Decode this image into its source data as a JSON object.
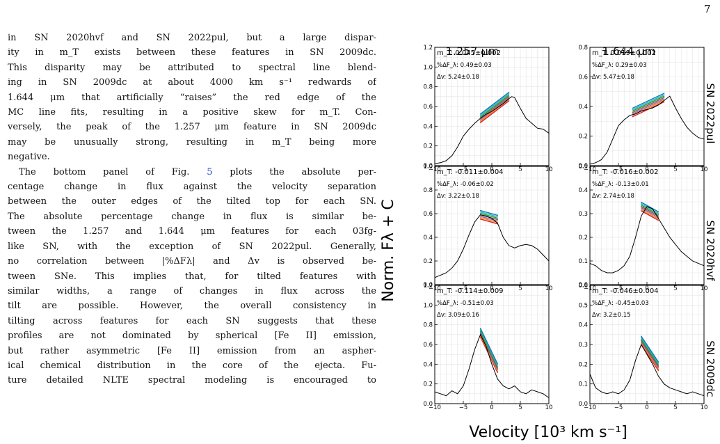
{
  "page_number": "7",
  "body_text": {
    "paragraph_1": [
      "in SN 2020hvf and SN 2022pul, but a large dispar-",
      "ity in m_T exists between these features in SN 2009dc.",
      "This disparity may be attributed to spectral line blend-",
      "ing in SN 2009dc at about 4000 km s⁻¹ redwards of",
      "1.644 μm that artificially “raises” the red edge of the",
      "MC line fits, resulting in a positive skew for m_T. Con-",
      "versely, the peak of the 1.257 μm feature in SN 2009dc",
      "may be unusually strong, resulting in m_T being more",
      "negative."
    ],
    "paragraph_2": {
      "first_line_prefix": "The bottom panel of Fig. ",
      "fig_ref": "5",
      "first_line_suffix": " plots the absolute per-",
      "lines": [
        "centage change in flux against the velocity separation",
        "between the outer edges of the tilted top for each SN.",
        "The absolute percentage change in flux is similar be-",
        "tween the 1.257 and 1.644 μm features for each 03fg-",
        "like SN, with the exception of SN 2022pul. Generally,",
        "no correlation between |%ΔFλ| and Δv is observed be-",
        "tween SNe. This implies that, for tilted features with",
        "similar widths, a range of changes in flux across the",
        "tilt are possible. However, the overall consistency in",
        "tilting across features for each SN suggests that these",
        "profiles are not dominated by spherical [Fe II] emission,",
        "but rather asymmetric [Fe II] emission from an aspher-",
        "ical chemical distribution in the core of the ejecta. Fu-",
        "ture detailed NLTE spectral modeling is encouraged to"
      ]
    }
  },
  "chart_data": {
    "type": "line",
    "column_titles": [
      "1.257 μm",
      "1.644 μm"
    ],
    "row_labels": [
      "SN 2022pul",
      "SN 2020hvf",
      "SN 2009dc"
    ],
    "xlabel": "Velocity [10³ km s⁻¹]",
    "ylabel": "Norm. Fλ + C",
    "xlim": [
      -10,
      10
    ],
    "xticks": [
      -10,
      -5,
      0,
      5,
      10
    ],
    "grid": true,
    "panels": [
      {
        "sn": "SN 2022pul",
        "feature": "1.257 μm",
        "ylim": [
          0,
          1.2
        ],
        "yticks": [
          0.0,
          0.2,
          0.4,
          0.6,
          0.8,
          1.0,
          1.2
        ],
        "annotations": [
          "m_T: 0.045±0.002",
          "%ΔF_λ: 0.49±0.03",
          "Δv: 5.24±0.18"
        ],
        "spectrum_x": [
          -10,
          -9,
          -8,
          -7,
          -6,
          -5,
          -4,
          -3,
          -2,
          -1,
          0,
          1,
          2,
          3,
          3.5,
          4,
          5,
          6,
          7,
          8,
          9,
          10
        ],
        "spectrum_y": [
          0.02,
          0.03,
          0.05,
          0.1,
          0.19,
          0.3,
          0.37,
          0.43,
          0.48,
          0.52,
          0.55,
          0.59,
          0.63,
          0.68,
          0.7,
          0.69,
          0.58,
          0.48,
          0.43,
          0.38,
          0.37,
          0.33
        ],
        "fit_x": [
          -2,
          3
        ],
        "fit_y": [
          0.48,
          0.7
        ]
      },
      {
        "sn": "SN 2022pul",
        "feature": "1.644 μm",
        "ylim": [
          0,
          0.8
        ],
        "yticks": [
          0.0,
          0.2,
          0.4,
          0.6,
          0.8
        ],
        "annotations": [
          "m_T: 0.019±0.002",
          "%ΔF_λ: 0.29±0.03",
          "Δv: 5.47±0.18"
        ],
        "spectrum_x": [
          -10,
          -9,
          -8,
          -7,
          -6,
          -5,
          -4,
          -3,
          -2,
          -1,
          0,
          1,
          2,
          3,
          4,
          5,
          6,
          7,
          8,
          9,
          10
        ],
        "spectrum_y": [
          0.01,
          0.02,
          0.04,
          0.09,
          0.18,
          0.27,
          0.31,
          0.34,
          0.35,
          0.37,
          0.38,
          0.39,
          0.41,
          0.44,
          0.47,
          0.39,
          0.32,
          0.26,
          0.22,
          0.19,
          0.18
        ],
        "fit_x": [
          -2.5,
          3
        ],
        "fit_y": [
          0.36,
          0.46
        ]
      },
      {
        "sn": "SN 2020hvf",
        "feature": "1.257 μm",
        "ylim": [
          0,
          1.0
        ],
        "yticks": [
          0.0,
          0.2,
          0.4,
          0.6,
          0.8,
          1.0
        ],
        "annotations": [
          "m_T: -0.011±0.004",
          "%ΔF_λ: -0.06±0.02",
          "Δv: 3.22±0.18"
        ],
        "spectrum_x": [
          -10,
          -9,
          -8,
          -7,
          -6,
          -5,
          -4,
          -3,
          -2,
          -1,
          0,
          1,
          2,
          3,
          4,
          5,
          6,
          7,
          8,
          9,
          10
        ],
        "spectrum_y": [
          0.06,
          0.08,
          0.1,
          0.14,
          0.2,
          0.3,
          0.42,
          0.53,
          0.59,
          0.58,
          0.56,
          0.52,
          0.4,
          0.33,
          0.31,
          0.33,
          0.34,
          0.33,
          0.3,
          0.25,
          0.2
        ],
        "fit_x": [
          -2,
          1
        ],
        "fit_y": [
          0.59,
          0.55
        ]
      },
      {
        "sn": "SN 2020hvf",
        "feature": "1.644 μm",
        "ylim": [
          0,
          0.5
        ],
        "yticks": [
          0.0,
          0.1,
          0.2,
          0.3,
          0.4,
          0.5
        ],
        "annotations": [
          "m_T: -0.016±0.002",
          "%ΔF_λ: -0.13±0.01",
          "Δv: 2.74±0.18"
        ],
        "spectrum_x": [
          -10,
          -9,
          -8,
          -7,
          -6,
          -5,
          -4,
          -3,
          -2,
          -1,
          0,
          1,
          2,
          3,
          4,
          5,
          6,
          7,
          8,
          9,
          10
        ],
        "spectrum_y": [
          0.09,
          0.08,
          0.06,
          0.05,
          0.05,
          0.06,
          0.08,
          0.12,
          0.2,
          0.29,
          0.33,
          0.32,
          0.28,
          0.24,
          0.2,
          0.17,
          0.14,
          0.12,
          0.1,
          0.09,
          0.08
        ],
        "fit_x": [
          -1,
          2
        ],
        "fit_y": [
          0.33,
          0.29
        ]
      },
      {
        "sn": "SN 2009dc",
        "feature": "1.257 μm",
        "ylim": [
          0,
          1.2
        ],
        "yticks": [
          0.0,
          0.2,
          0.4,
          0.6,
          0.8,
          1.0,
          1.2
        ],
        "annotations": [
          "m_T: -0.114±0.009",
          "%ΔF_λ: -0.51±0.03",
          "Δv: 3.09±0.16"
        ],
        "spectrum_x": [
          -10,
          -9,
          -8,
          -7,
          -6,
          -5,
          -4,
          -3,
          -2,
          -1,
          0,
          1,
          2,
          3,
          4,
          5,
          6,
          7,
          8,
          9,
          10
        ],
        "spectrum_y": [
          0.12,
          0.1,
          0.08,
          0.13,
          0.1,
          0.18,
          0.35,
          0.55,
          0.7,
          0.58,
          0.4,
          0.25,
          0.18,
          0.15,
          0.18,
          0.12,
          0.1,
          0.14,
          0.12,
          0.1,
          0.06
        ],
        "fit_x": [
          -2,
          1
        ],
        "fit_y": [
          0.72,
          0.36
        ]
      },
      {
        "sn": "SN 2009dc",
        "feature": "1.644 μm",
        "ylim": [
          0,
          0.6
        ],
        "yticks": [
          0.0,
          0.1,
          0.2,
          0.3,
          0.4,
          0.5,
          0.6
        ],
        "annotations": [
          "m_T: -0.046±0.004",
          "%ΔF_λ: -0.45±0.03",
          "Δv: 3.2±0.15"
        ],
        "spectrum_x": [
          -10,
          -9,
          -8,
          -7,
          -6,
          -5,
          -4,
          -3,
          -2,
          -1,
          0,
          1,
          2,
          3,
          4,
          5,
          6,
          7,
          8,
          9,
          10
        ],
        "spectrum_y": [
          0.15,
          0.08,
          0.06,
          0.05,
          0.06,
          0.05,
          0.07,
          0.12,
          0.22,
          0.3,
          0.25,
          0.2,
          0.14,
          0.1,
          0.08,
          0.07,
          0.06,
          0.05,
          0.06,
          0.05,
          0.04
        ],
        "fit_x": [
          -1,
          2
        ],
        "fit_y": [
          0.32,
          0.19
        ]
      }
    ]
  }
}
